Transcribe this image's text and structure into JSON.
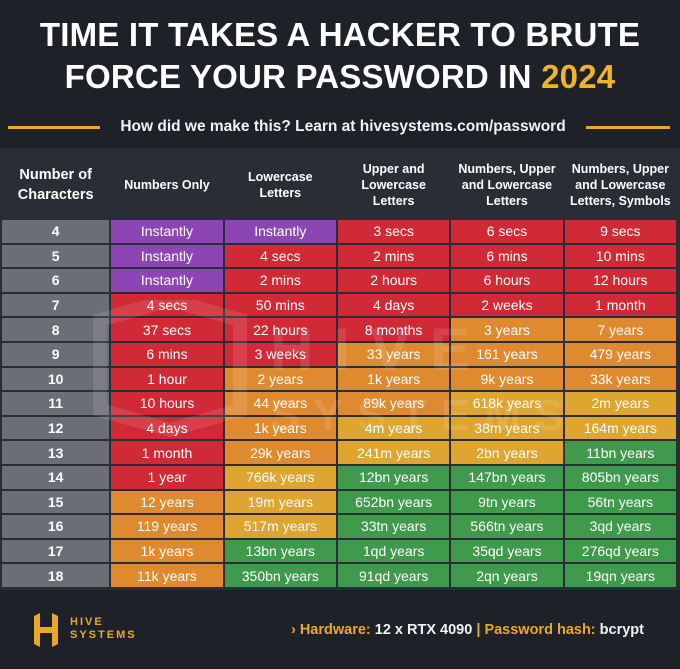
{
  "title": {
    "line1": "TIME IT TAKES A HACKER TO BRUTE",
    "line2_prefix": "FORCE YOUR PASSWORD IN",
    "year": "2024"
  },
  "subtitle": "How did we make this? Learn at hivesystems.com/password",
  "colors": {
    "purple": "#8b46b3",
    "red": "#cf2a36",
    "orange": "#e08a30",
    "yellow": "#dfa531",
    "green": "#3f9a4c",
    "gold_text": "#f0b429"
  },
  "chart_data": {
    "type": "table",
    "columns": [
      "Number of Characters",
      "Numbers Only",
      "Lowercase Letters",
      "Upper and Lowercase Letters",
      "Numbers, Upper and Lowercase Letters",
      "Numbers, Upper and Lowercase Letters, Symbols"
    ],
    "rows": [
      {
        "chars": "4",
        "cells": [
          "Instantly",
          "Instantly",
          "3 secs",
          "6 secs",
          "9 secs"
        ],
        "colors": [
          "purple",
          "purple",
          "red",
          "red",
          "red"
        ]
      },
      {
        "chars": "5",
        "cells": [
          "Instantly",
          "4 secs",
          "2 mins",
          "6 mins",
          "10 mins"
        ],
        "colors": [
          "purple",
          "red",
          "red",
          "red",
          "red"
        ]
      },
      {
        "chars": "6",
        "cells": [
          "Instantly",
          "2 mins",
          "2 hours",
          "6 hours",
          "12 hours"
        ],
        "colors": [
          "purple",
          "red",
          "red",
          "red",
          "red"
        ]
      },
      {
        "chars": "7",
        "cells": [
          "4 secs",
          "50 mins",
          "4 days",
          "2 weeks",
          "1 month"
        ],
        "colors": [
          "red",
          "red",
          "red",
          "red",
          "red"
        ]
      },
      {
        "chars": "8",
        "cells": [
          "37 secs",
          "22 hours",
          "8 months",
          "3 years",
          "7 years"
        ],
        "colors": [
          "red",
          "red",
          "red",
          "orange",
          "orange"
        ]
      },
      {
        "chars": "9",
        "cells": [
          "6 mins",
          "3 weeks",
          "33 years",
          "161 years",
          "479 years"
        ],
        "colors": [
          "red",
          "red",
          "orange",
          "orange",
          "orange"
        ]
      },
      {
        "chars": "10",
        "cells": [
          "1 hour",
          "2 years",
          "1k years",
          "9k years",
          "33k years"
        ],
        "colors": [
          "red",
          "orange",
          "orange",
          "orange",
          "orange"
        ]
      },
      {
        "chars": "11",
        "cells": [
          "10 hours",
          "44 years",
          "89k years",
          "618k years",
          "2m years"
        ],
        "colors": [
          "red",
          "orange",
          "orange",
          "yellow",
          "yellow"
        ]
      },
      {
        "chars": "12",
        "cells": [
          "4 days",
          "1k years",
          "4m years",
          "38m years",
          "164m years"
        ],
        "colors": [
          "red",
          "orange",
          "yellow",
          "yellow",
          "yellow"
        ]
      },
      {
        "chars": "13",
        "cells": [
          "1 month",
          "29k years",
          "241m years",
          "2bn years",
          "11bn years"
        ],
        "colors": [
          "red",
          "orange",
          "yellow",
          "yellow",
          "green"
        ]
      },
      {
        "chars": "14",
        "cells": [
          "1 year",
          "766k years",
          "12bn years",
          "147bn years",
          "805bn years"
        ],
        "colors": [
          "red",
          "yellow",
          "green",
          "green",
          "green"
        ]
      },
      {
        "chars": "15",
        "cells": [
          "12 years",
          "19m years",
          "652bn years",
          "9tn years",
          "56tn years"
        ],
        "colors": [
          "orange",
          "yellow",
          "green",
          "green",
          "green"
        ]
      },
      {
        "chars": "16",
        "cells": [
          "119 years",
          "517m years",
          "33tn years",
          "566tn years",
          "3qd years"
        ],
        "colors": [
          "orange",
          "yellow",
          "green",
          "green",
          "green"
        ]
      },
      {
        "chars": "17",
        "cells": [
          "1k years",
          "13bn years",
          "1qd years",
          "35qd years",
          "276qd years"
        ],
        "colors": [
          "orange",
          "green",
          "green",
          "green",
          "green"
        ]
      },
      {
        "chars": "18",
        "cells": [
          "11k years",
          "350bn years",
          "91qd years",
          "2qn years",
          "19qn years"
        ],
        "colors": [
          "orange",
          "green",
          "green",
          "green",
          "green"
        ]
      }
    ]
  },
  "footer": {
    "logo_line1": "HIVE",
    "logo_line2": "SYSTEMS",
    "arrow": "›",
    "hardware_label": "Hardware:",
    "hardware_value": "12 x RTX 4090",
    "separator": "|",
    "hash_label": "Password hash:",
    "hash_value": "bcrypt"
  },
  "watermark": {
    "line1": "HIVE",
    "line2": "SYSTEMS"
  }
}
